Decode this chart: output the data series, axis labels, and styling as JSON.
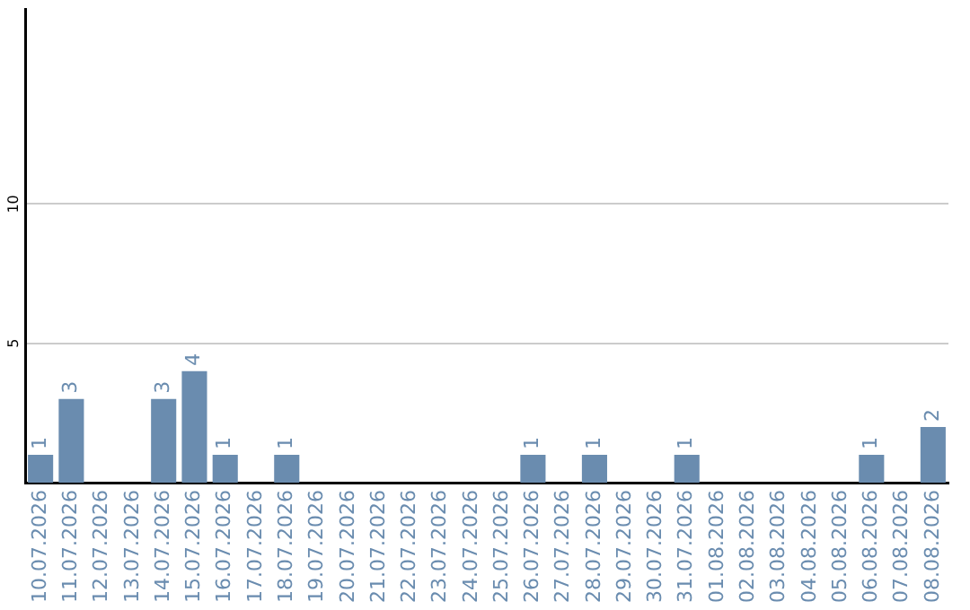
{
  "chart_data": {
    "type": "bar",
    "categories": [
      "10.07.2026",
      "11.07.2026",
      "12.07.2026",
      "13.07.2026",
      "14.07.2026",
      "15.07.2026",
      "16.07.2026",
      "17.07.2026",
      "18.07.2026",
      "19.07.2026",
      "20.07.2026",
      "21.07.2026",
      "22.07.2026",
      "23.07.2026",
      "24.07.2026",
      "25.07.2026",
      "26.07.2026",
      "27.07.2026",
      "28.07.2026",
      "29.07.2026",
      "30.07.2026",
      "31.07.2026",
      "01.08.2026",
      "02.08.2026",
      "03.08.2026",
      "04.08.2026",
      "05.08.2026",
      "06.08.2026",
      "07.08.2026",
      "08.08.2026"
    ],
    "values": [
      1,
      3,
      null,
      null,
      3,
      4,
      1,
      null,
      1,
      null,
      null,
      null,
      null,
      null,
      null,
      null,
      1,
      null,
      1,
      null,
      null,
      1,
      null,
      null,
      null,
      null,
      null,
      1,
      null,
      2
    ],
    "color": "#6a8caf",
    "ylim": [
      0,
      17
    ],
    "yticks": [
      5,
      10
    ],
    "grid": "y",
    "data_labels": true,
    "legend": false
  }
}
